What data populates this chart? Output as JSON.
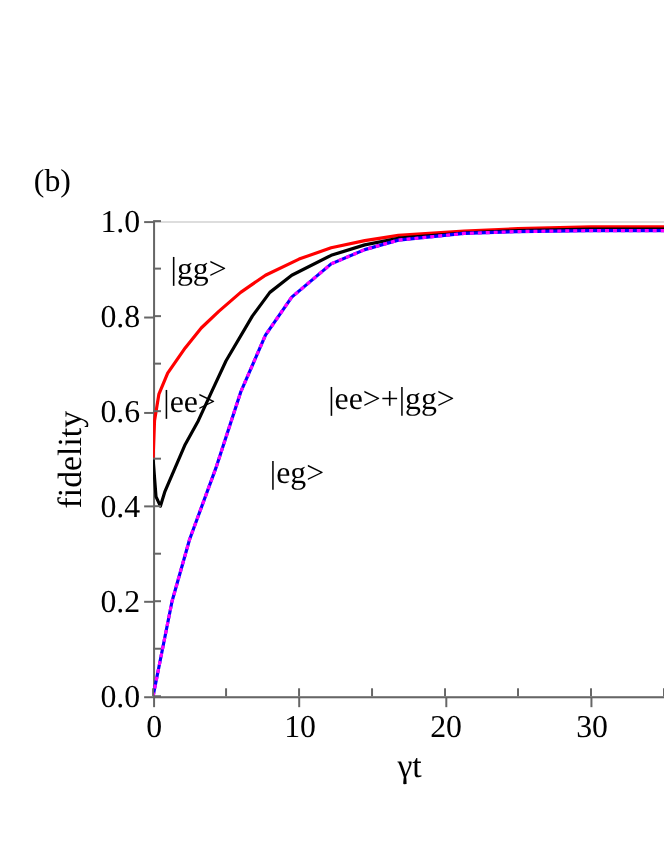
{
  "chart_data": {
    "type": "line",
    "title": "(b)",
    "xlabel": "γt",
    "ylabel": "fidelity",
    "xlim": [
      0,
      35
    ],
    "ylim": [
      0,
      1
    ],
    "xticks": [
      0,
      {
        "value": 5,
        "label": null
      },
      10,
      {
        "value": 15,
        "label": null
      },
      20,
      {
        "value": 25,
        "label": null
      },
      30,
      {
        "value": 35,
        "label": null
      }
    ],
    "yticks": [
      {
        "value": 0,
        "label": "0.0"
      },
      {
        "value": 0.1,
        "label": null
      },
      {
        "value": 0.2,
        "label": "0.2"
      },
      {
        "value": 0.3,
        "label": null
      },
      {
        "value": 0.4,
        "label": "0.4"
      },
      {
        "value": 0.5,
        "label": null
      },
      {
        "value": 0.6,
        "label": "0.6"
      },
      {
        "value": 0.7,
        "label": null
      },
      {
        "value": 0.8,
        "label": "0.8"
      },
      {
        "value": 0.9,
        "label": null
      },
      {
        "value": 1.0,
        "label": "1.0"
      }
    ],
    "grid": false,
    "legend": false,
    "line_style": "solid",
    "series": [
      {
        "name": "|gg>",
        "color": "#ff0000",
        "x": [
          0,
          0.1,
          0.4,
          1,
          2.2,
          3.3,
          4.5,
          6,
          7.7,
          10,
          12.2,
          14.5,
          16.8,
          21.3,
          25,
          30,
          35
        ],
        "values": [
          0.5,
          0.58,
          0.636,
          0.68,
          0.733,
          0.775,
          0.81,
          0.85,
          0.886,
          0.92,
          0.944,
          0.959,
          0.97,
          0.979,
          0.984,
          0.988,
          0.988
        ]
      },
      {
        "name": "|ee>",
        "color": "#000000",
        "x": [
          0,
          0.2,
          0.5,
          0.8,
          1.5,
          2.2,
          3.1,
          4,
          5,
          6.8,
          8,
          9.5,
          12.2,
          14.5,
          16.8,
          21.3,
          25,
          30,
          35
        ],
        "values": [
          0.5,
          0.42,
          0.4,
          0.43,
          0.48,
          0.53,
          0.58,
          0.64,
          0.706,
          0.8,
          0.85,
          0.886,
          0.928,
          0.95,
          0.964,
          0.975,
          0.98,
          0.983,
          0.983
        ]
      },
      {
        "name": "|eg>",
        "color": "#0000ff",
        "x": [
          0,
          1.3,
          2.5,
          4.3,
          6,
          7.7,
          9.5,
          12.2,
          14.5,
          16.8,
          21.3,
          25,
          30,
          35
        ],
        "values": [
          0,
          0.2,
          0.33,
          0.48,
          0.64,
          0.76,
          0.84,
          0.91,
          0.94,
          0.96,
          0.974,
          0.978,
          0.98,
          0.98
        ]
      },
      {
        "name": "|ee>+|gg>",
        "color": "#ff00ff",
        "line_style": "dotted",
        "x": [
          0,
          1.3,
          2.5,
          4.3,
          6,
          7.7,
          9.5,
          12.2,
          14.5,
          16.8,
          21.3,
          25,
          30,
          35
        ],
        "values": [
          0,
          0.2,
          0.33,
          0.48,
          0.64,
          0.76,
          0.84,
          0.91,
          0.94,
          0.96,
          0.974,
          0.978,
          0.98,
          0.98
        ]
      }
    ]
  }
}
